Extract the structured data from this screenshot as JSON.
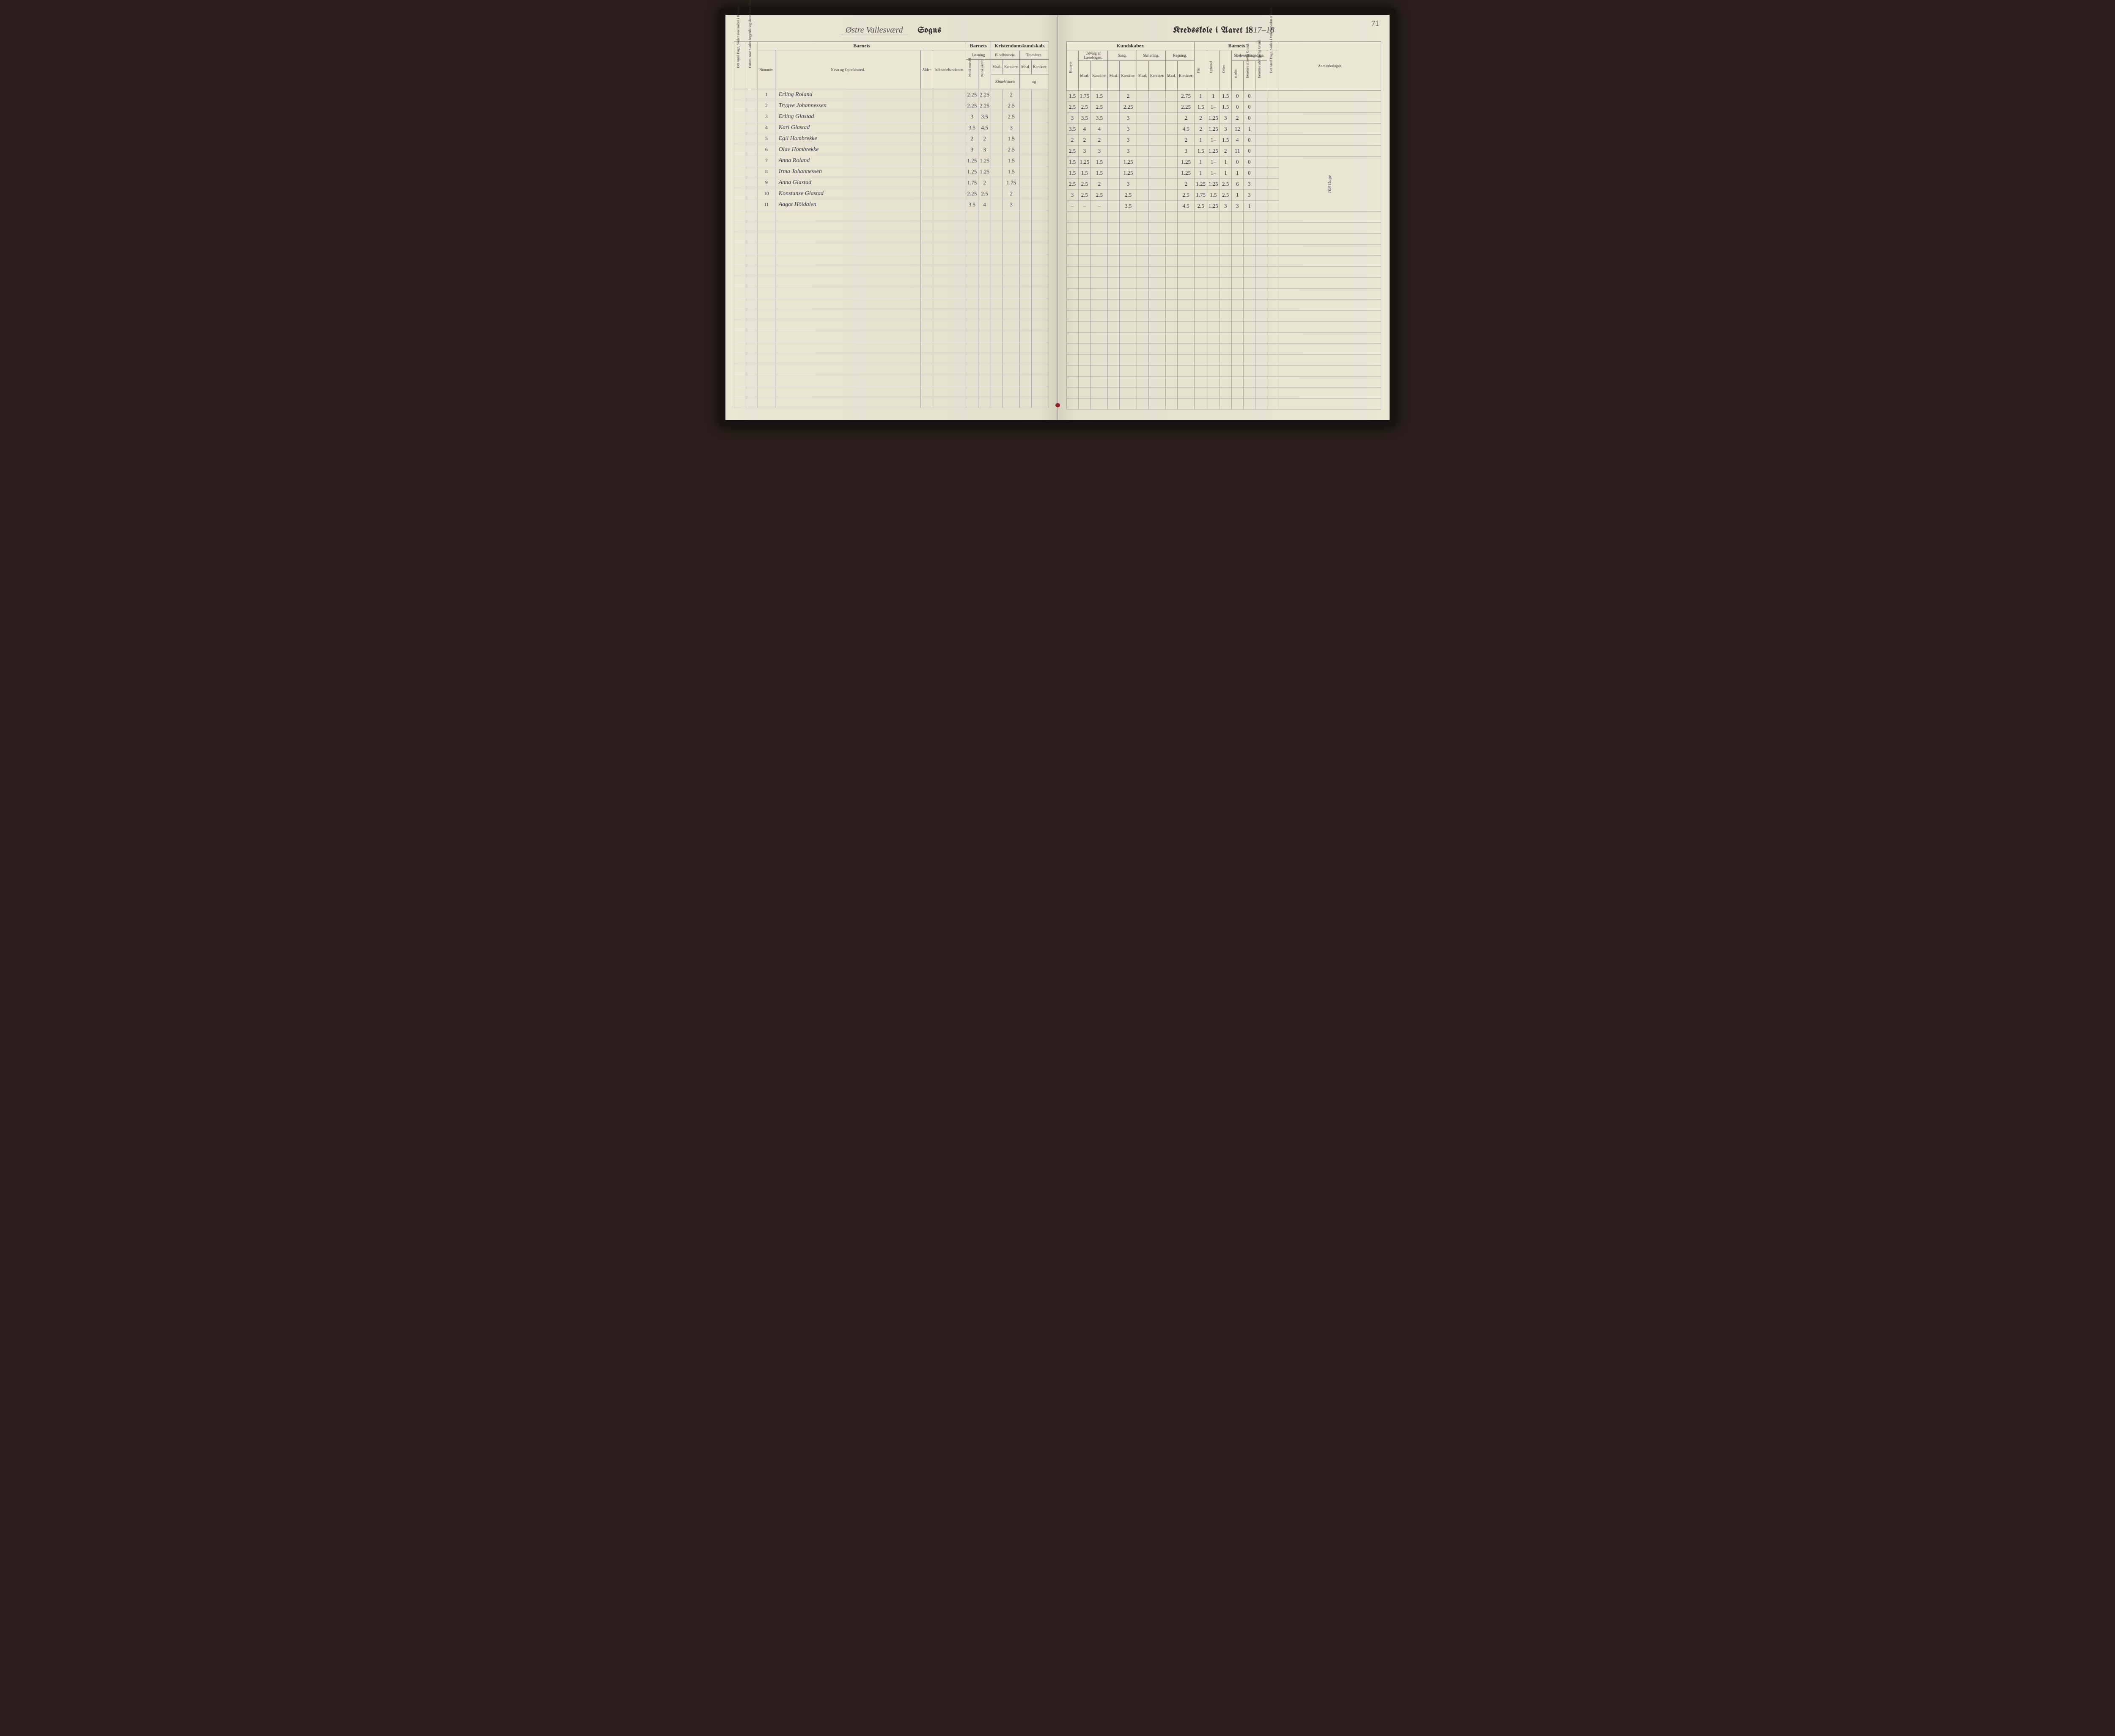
{
  "page_number": "71",
  "left_header": {
    "parish": "Østre Vallesværd",
    "sogns": "Sogns"
  },
  "right_header": {
    "title": "Kredsskole i Aaret 18",
    "year_suffix": "17–18"
  },
  "left_cols": {
    "group_barnets": "Barnets",
    "antal_dage": "Det Antal Dage, Skolen skal holdes i Kredsen.",
    "datum": "Datum, naar Skolen begynder og slutter hver Omgang.",
    "nummer": "Nummer.",
    "navn": "Navn og Opholdssted.",
    "alder": "Alder.",
    "indtra": "Indtrædelsesdatum.",
    "laesning": "Læsning",
    "norsk_m": "Norsk mundtl.",
    "norsk_s": "Norsk skriftl.",
    "kristendom": "Kristendomskundskab.",
    "bibel": "Bibelhistorie.",
    "troes": "Troeslære.",
    "maal": "Maal.",
    "karakter": "Karakter."
  },
  "right_cols": {
    "kundskaber": "Kundskaber.",
    "barnets": "Barnets",
    "historie": "Historie",
    "geografi": "Geografi",
    "naturfag": "Naturfag",
    "udvalg": "Udvalg af Læsebogen.",
    "sang": "Sang.",
    "skrivning": "Skrivning.",
    "regning": "Regning.",
    "flid": "Flid",
    "opforsel": "Opførsel",
    "orden": "Orden",
    "skolesogning": "Skolesøgningsdage.",
    "modte": "mødte.",
    "lovlig": "forsømte af lovlig Grund.",
    "ulovlig": "forsømte uden lovlig Grund.",
    "antal_virk": "Det Antal Dage, Skolen i Virkeligheden er holdt.",
    "anm": "Anmærkninger.",
    "maal": "Maal.",
    "karakter": "Karakter."
  },
  "rows": [
    {
      "n": "1",
      "name": "Erling Roland",
      "c1": "2.25",
      "c2": "2.25",
      "c3": "",
      "c4": "2",
      "r1": "1.5",
      "r2": "1.75",
      "r3": "1.5",
      "r4": "",
      "r5": "2",
      "r6": "",
      "r7": "2.75",
      "r8": "1",
      "r9": "1",
      "r10": "1.5",
      "r11": "0",
      "r12": "0",
      "rem": ""
    },
    {
      "n": "2",
      "name": "Trygve Johannessen",
      "c1": "2.25",
      "c2": "2.25",
      "c3": "",
      "c4": "2.5",
      "r1": "2.5",
      "r2": "2.5",
      "r3": "2.5",
      "r4": "",
      "r5": "2.25",
      "r6": "",
      "r7": "2.25",
      "r8": "1.5",
      "r9": "1–",
      "r10": "1.5",
      "r11": "0",
      "r12": "0",
      "rem": ""
    },
    {
      "n": "3",
      "name": "Erling Glastad",
      "c1": "3",
      "c2": "3.5",
      "c3": "",
      "c4": "2.5",
      "r1": "3",
      "r2": "3.5",
      "r3": "3.5",
      "r4": "",
      "r5": "3",
      "r6": "",
      "r7": "2",
      "r8": "2",
      "r9": "1.25",
      "r10": "3",
      "r11": "2",
      "r12": "0",
      "rem": ""
    },
    {
      "n": "4",
      "name": "Karl Glastad",
      "c1": "3.5",
      "c2": "4.5",
      "c3": "",
      "c4": "3",
      "r1": "3.5",
      "r2": "4",
      "r3": "4",
      "r4": "",
      "r5": "3",
      "r6": "",
      "r7": "4.5",
      "r8": "2",
      "r9": "1.25",
      "r10": "3",
      "r11": "12",
      "r12": "1",
      "rem": ""
    },
    {
      "n": "5",
      "name": "Egil Hombrekke",
      "c1": "2",
      "c2": "2",
      "c3": "",
      "c4": "1.5",
      "r1": "2",
      "r2": "2",
      "r3": "2",
      "r4": "",
      "r5": "3",
      "r6": "",
      "r7": "2",
      "r8": "1",
      "r9": "1–",
      "r10": "1.5",
      "r11": "4",
      "r12": "0",
      "rem": ""
    },
    {
      "n": "6",
      "name": "Olav Hombrekke",
      "c1": "3",
      "c2": "3",
      "c3": "",
      "c4": "2.5",
      "r1": "2.5",
      "r2": "3",
      "r3": "3",
      "r4": "",
      "r5": "3",
      "r6": "",
      "r7": "3",
      "r8": "1.5",
      "r9": "1.25",
      "r10": "2",
      "r11": "11",
      "r12": "0",
      "rem": ""
    },
    {
      "n": "7",
      "name": "Anna Roland",
      "c1": "1.25",
      "c2": "1.25",
      "c3": "",
      "c4": "1.5",
      "r1": "1.5",
      "r2": "1.25",
      "r3": "1.5",
      "r4": "",
      "r5": "1.25",
      "r6": "",
      "r7": "1.25",
      "r8": "1",
      "r9": "1–",
      "r10": "1",
      "r11": "0",
      "r12": "0",
      "rem": ""
    },
    {
      "n": "8",
      "name": "Irma Johannessen",
      "c1": "1.25",
      "c2": "1.25",
      "c3": "",
      "c4": "1.5",
      "r1": "1.5",
      "r2": "1.5",
      "r3": "1.5",
      "r4": "",
      "r5": "1.25",
      "r6": "",
      "r7": "1.25",
      "r8": "1",
      "r9": "1–",
      "r10": "1",
      "r11": "1",
      "r12": "0",
      "rem": ""
    },
    {
      "n": "9",
      "name": "Anna Glastad",
      "c1": "1.75",
      "c2": "2",
      "c3": "",
      "c4": "1.75",
      "r1": "2.5",
      "r2": "2.5",
      "r3": "2",
      "r4": "",
      "r5": "3",
      "r6": "",
      "r7": "2",
      "r8": "1.25",
      "r9": "1.25",
      "r10": "2.5",
      "r11": "6",
      "r12": "3",
      "rem": ""
    },
    {
      "n": "10",
      "name": "Konstanse Glastad",
      "c1": "2.25",
      "c2": "2.5",
      "c3": "",
      "c4": "2",
      "r1": "3",
      "r2": "2.5",
      "r3": "2.5",
      "r4": "",
      "r5": "2.5",
      "r6": "",
      "r7": "2.5",
      "r8": "1.75",
      "r9": "1.5",
      "r10": "2.5",
      "r11": "1",
      "r12": "3",
      "rem": ""
    },
    {
      "n": "11",
      "name": "Aagot Höidalen",
      "c1": "3.5",
      "c2": "4",
      "c3": "",
      "c4": "3",
      "r1": "–",
      "r2": "–",
      "r3": "–",
      "r4": "",
      "r5": "3.5",
      "r6": "",
      "r7": "4.5",
      "r8": "2.5",
      "r9": "1.25",
      "r10": "3",
      "r11": "3",
      "r12": "1",
      "rem": ""
    }
  ],
  "side_note": "108 Dage",
  "empty_rows": 18
}
